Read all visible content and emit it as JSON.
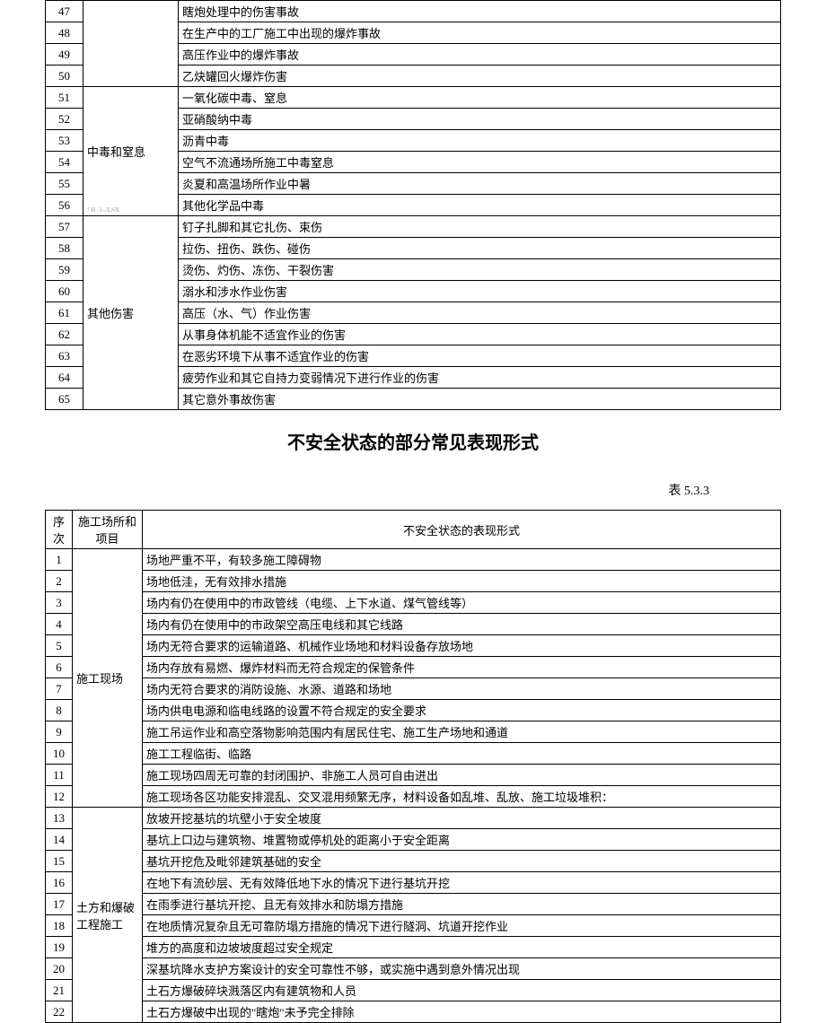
{
  "table1": {
    "rows": [
      {
        "num": "47",
        "cat": "",
        "desc": "瞎炮处理中的伤害事故",
        "merge": "cont"
      },
      {
        "num": "48",
        "cat": "",
        "desc": "在生产中的工厂施工中出现的爆炸事故",
        "merge": "cont"
      },
      {
        "num": "49",
        "cat": "",
        "desc": "高压作业中的爆炸事故",
        "merge": "cont"
      },
      {
        "num": "50",
        "cat": "",
        "desc": "乙炔罐回火爆炸伤害",
        "merge": "cont"
      },
      {
        "num": "51",
        "cat": "中毒和窒息",
        "desc": "一氧化碳中毒、窒息",
        "merge": "start",
        "span": 6,
        "watermark": "! H -1-./LSX"
      },
      {
        "num": "52",
        "cat": "",
        "desc": "亚硝酸纳中毒",
        "merge": "cont"
      },
      {
        "num": "53",
        "cat": "",
        "desc": "沥青中毒",
        "merge": "cont"
      },
      {
        "num": "54",
        "cat": "",
        "desc": "空气不流通场所施工中毒窒息",
        "merge": "cont"
      },
      {
        "num": "55",
        "cat": "",
        "desc": "炎夏和高温场所作业中暑",
        "merge": "cont"
      },
      {
        "num": "56",
        "cat": "",
        "desc": "其他化学品中毒",
        "merge": "cont"
      },
      {
        "num": "57",
        "cat": "其他伤害",
        "desc": "钉子扎脚和其它扎伤、束伤",
        "merge": "start",
        "span": 9
      },
      {
        "num": "58",
        "cat": "",
        "desc": "拉伤、扭伤、跌伤、碰伤",
        "merge": "cont"
      },
      {
        "num": "59",
        "cat": "",
        "desc": "烫伤、灼伤、冻伤、干裂伤害",
        "merge": "cont"
      },
      {
        "num": "60",
        "cat": "",
        "desc": "溺水和涉水作业伤害",
        "merge": "cont"
      },
      {
        "num": "61",
        "cat": "",
        "desc": "高压（水、气）作业伤害",
        "merge": "cont"
      },
      {
        "num": "62",
        "cat": "",
        "desc": "从事身体机能不适宜作业的伤害",
        "merge": "cont"
      },
      {
        "num": "63",
        "cat": "",
        "desc": "在恶劣环境下从事不适宜作业的伤害",
        "merge": "cont"
      },
      {
        "num": "64",
        "cat": "",
        "desc": "疲劳作业和其它自持力变弱情况下进行作业的伤害",
        "merge": "cont"
      },
      {
        "num": "65",
        "cat": "",
        "desc": "其它意外事故伤害",
        "merge": "cont"
      }
    ],
    "hidden_group_span": 4
  },
  "section_title": "不安全状态的部分常见表现形式",
  "table_label": "表  5.3.3",
  "table2": {
    "headers": {
      "num": "序  次",
      "cat": "施工场所和项目",
      "desc": "不安全状态的表现形式"
    },
    "rows": [
      {
        "num": "1",
        "cat": "施工现场",
        "desc": "场地严重不平，有较多施工障碍物",
        "merge": "start",
        "span": 12
      },
      {
        "num": "2",
        "cat": "",
        "desc": "场地低洼，无有效排水措施",
        "merge": "cont"
      },
      {
        "num": "3",
        "cat": "",
        "desc": "场内有仍在使用中的市政管线（电缆、上下水道、煤气管线等）",
        "merge": "cont"
      },
      {
        "num": "4",
        "cat": "",
        "desc": "场内有仍在使用中的市政架空高压电线和其它线路",
        "merge": "cont"
      },
      {
        "num": "5",
        "cat": "",
        "desc": "场内无符合要求的运输道路、机械作业场地和材料设备存放场地",
        "merge": "cont"
      },
      {
        "num": "6",
        "cat": "",
        "desc": "场内存放有易燃、爆炸材料而无符合规定的保管条件",
        "merge": "cont",
        "tall": true
      },
      {
        "num": "7",
        "cat": "",
        "desc": "场内无符合要求的消防设施、水源、道路和场地",
        "merge": "cont"
      },
      {
        "num": "8",
        "cat": "",
        "desc": "场内供电电源和临电线路的设置不符合规定的安全要求",
        "merge": "cont",
        "tall": true
      },
      {
        "num": "9",
        "cat": "",
        "desc": "施工吊运作业和高空落物影响范围内有居民住宅、施工生产场地和通道",
        "merge": "cont"
      },
      {
        "num": "10",
        "cat": "",
        "desc": "施工工程临街、临路",
        "merge": "cont",
        "tall": true
      },
      {
        "num": "11",
        "cat": "",
        "desc": "施工现场四周无可靠的封闭围护、非施工人员可自由进出",
        "merge": "cont",
        "tall": true
      },
      {
        "num": "12",
        "cat": "",
        "desc": "施工现场各区功能安排混乱、交叉混用频繁无序，材料设备如乱堆、乱放、施工垃圾堆积：",
        "merge": "cont",
        "tall": true
      },
      {
        "num": "13",
        "cat": "土方和爆破工程施工",
        "desc": "放坡开挖基坑的坑壁小于安全坡度",
        "merge": "start",
        "span": 10
      },
      {
        "num": "14",
        "cat": "",
        "desc": "基坑上口边与建筑物、堆置物或停机处的距离小于安全距离",
        "merge": "cont"
      },
      {
        "num": "15",
        "cat": "",
        "desc": "基坑开挖危及毗邻建筑基础的安全",
        "merge": "cont",
        "tall": true
      },
      {
        "num": "16",
        "cat": "",
        "desc": "在地下有流砂层、无有效降低地下水的情况下进行基坑开挖",
        "merge": "cont",
        "tall": true
      },
      {
        "num": "17",
        "cat": "",
        "desc": "在雨季进行基坑开挖、且无有效排水和防塌方措施",
        "merge": "cont",
        "tall": true
      },
      {
        "num": "18",
        "cat": "",
        "desc": "在地质情况复杂且无可靠防塌方措施的情况下进行隧洞、坑道开挖作业",
        "merge": "cont"
      },
      {
        "num": "19",
        "cat": "",
        "desc": "堆方的高度和边坡坡度超过安全规定",
        "merge": "cont"
      },
      {
        "num": "20",
        "cat": "",
        "desc": "深基坑降水支护方案设计的安全可靠性不够，或实施中遇到意外情况出现",
        "merge": "cont",
        "tall": true
      },
      {
        "num": "21",
        "cat": "",
        "desc": "土石方爆破碎块溅落区内有建筑物和人员",
        "merge": "cont",
        "tall": true
      },
      {
        "num": "22",
        "cat": "",
        "desc": "土石方爆破中出现的\"瞎炮\"未予完全排除",
        "merge": "cont",
        "tall": true
      }
    ]
  }
}
